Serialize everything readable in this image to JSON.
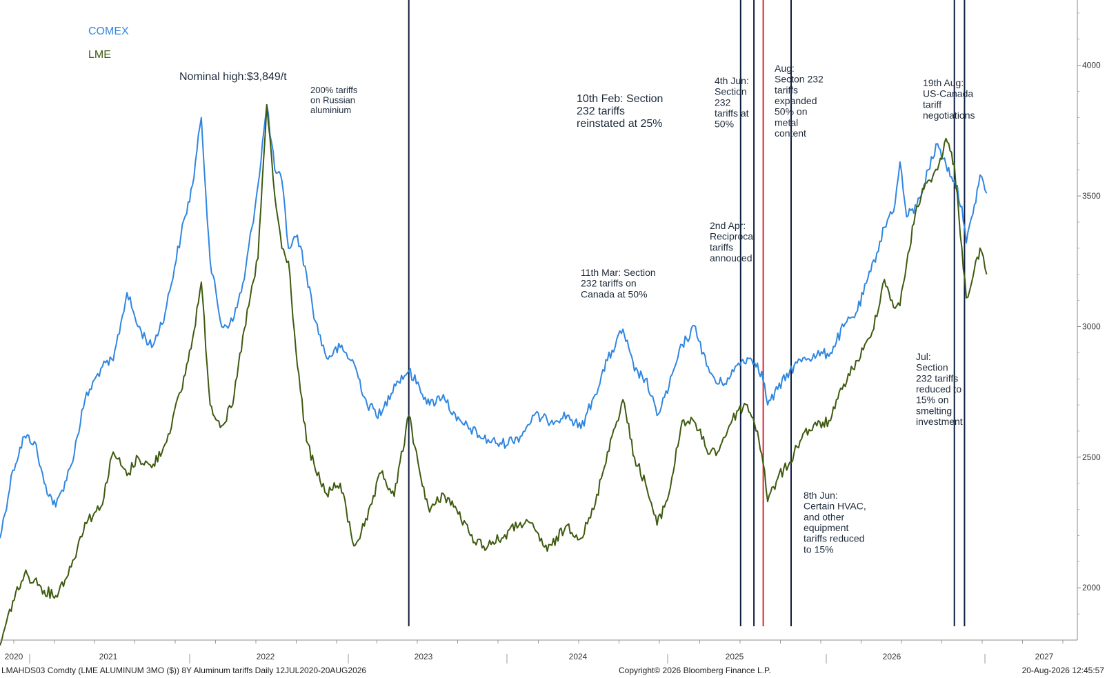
{
  "chart_data": {
    "type": "line",
    "ylim": [
      1800,
      4250
    ],
    "y_ticks": [
      2000,
      2500,
      3000,
      3500,
      4000
    ],
    "x_tick_labels": [
      "2020",
      "2021",
      "2022",
      "2023",
      "2024",
      "2025",
      "2026",
      "2027"
    ],
    "grid": false,
    "legend_position": "top-left",
    "series": [
      {
        "name": "COMEX",
        "color": "#2f86e0",
        "points": [
          [
            "2020-07-12",
            2190
          ],
          [
            "2020-08-10",
            2450
          ],
          [
            "2020-09-05",
            2580
          ],
          [
            "2020-09-28",
            2560
          ],
          [
            "2020-10-20",
            2400
          ],
          [
            "2020-11-15",
            2310
          ],
          [
            "2020-12-20",
            2470
          ],
          [
            "2021-01-20",
            2720
          ],
          [
            "2021-02-25",
            2840
          ],
          [
            "2021-03-25",
            2870
          ],
          [
            "2021-04-25",
            3130
          ],
          [
            "2021-05-20",
            3000
          ],
          [
            "2021-06-20",
            2920
          ],
          [
            "2021-07-20",
            3050
          ],
          [
            "2021-08-25",
            3350
          ],
          [
            "2021-09-20",
            3540
          ],
          [
            "2021-10-10",
            3800
          ],
          [
            "2021-10-30",
            3250
          ],
          [
            "2021-11-25",
            3000
          ],
          [
            "2021-12-20",
            3020
          ],
          [
            "2022-01-15",
            3180
          ],
          [
            "2022-02-15",
            3540
          ],
          [
            "2022-03-07",
            3849
          ],
          [
            "2022-03-25",
            3600
          ],
          [
            "2022-04-10",
            3560
          ],
          [
            "2022-04-25",
            3300
          ],
          [
            "2022-05-15",
            3350
          ],
          [
            "2022-06-05",
            3200
          ],
          [
            "2022-06-25",
            3020
          ],
          [
            "2022-07-20",
            2880
          ],
          [
            "2022-08-20",
            2920
          ],
          [
            "2022-09-20",
            2860
          ],
          [
            "2022-10-20",
            2700
          ],
          [
            "2022-11-20",
            2660
          ],
          [
            "2022-12-20",
            2780
          ],
          [
            "2023-01-22",
            2830
          ],
          [
            "2023-02-15",
            2770
          ],
          [
            "2023-03-10",
            2700
          ],
          [
            "2023-04-10",
            2740
          ],
          [
            "2023-05-10",
            2640
          ],
          [
            "2023-06-10",
            2610
          ],
          [
            "2023-07-10",
            2570
          ],
          [
            "2023-08-20",
            2550
          ],
          [
            "2023-10-01",
            2580
          ],
          [
            "2023-11-01",
            2660
          ],
          [
            "2023-12-01",
            2640
          ],
          [
            "2024-01-15",
            2660
          ],
          [
            "2024-02-15",
            2610
          ],
          [
            "2024-03-15",
            2730
          ],
          [
            "2024-04-15",
            2870
          ],
          [
            "2024-05-20",
            2990
          ],
          [
            "2024-06-15",
            2830
          ],
          [
            "2024-07-10",
            2800
          ],
          [
            "2024-08-05",
            2660
          ],
          [
            "2024-09-01",
            2770
          ],
          [
            "2024-10-01",
            2930
          ],
          [
            "2024-10-31",
            3000
          ],
          [
            "2024-11-25",
            2850
          ],
          [
            "2024-12-20",
            2780
          ],
          [
            "2025-01-15",
            2800
          ],
          [
            "2025-02-05",
            2860
          ],
          [
            "2025-02-25",
            2880
          ],
          [
            "2025-03-20",
            2860
          ],
          [
            "2025-04-05",
            2780
          ],
          [
            "2025-04-12",
            2700
          ],
          [
            "2025-05-05",
            2760
          ],
          [
            "2025-06-01",
            2830
          ],
          [
            "2025-07-01",
            2880
          ],
          [
            "2025-08-01",
            2890
          ],
          [
            "2025-09-01",
            2900
          ],
          [
            "2025-10-01",
            3000
          ],
          [
            "2025-11-01",
            3060
          ],
          [
            "2025-12-01",
            3210
          ],
          [
            "2026-01-01",
            3380
          ],
          [
            "2026-01-25",
            3470
          ],
          [
            "2026-02-05",
            3630
          ],
          [
            "2026-02-20",
            3420
          ],
          [
            "2026-03-15",
            3460
          ],
          [
            "2026-04-10",
            3600
          ],
          [
            "2026-05-01",
            3700
          ],
          [
            "2026-05-20",
            3620
          ],
          [
            "2026-06-08",
            3560
          ],
          [
            "2026-06-25",
            3460
          ],
          [
            "2026-07-05",
            3320
          ],
          [
            "2026-07-20",
            3430
          ],
          [
            "2026-08-05",
            3580
          ],
          [
            "2026-08-20",
            3510
          ]
        ]
      },
      {
        "name": "LME",
        "color": "#3d5a0f",
        "points": [
          [
            "2020-07-12",
            1780
          ],
          [
            "2020-08-10",
            1950
          ],
          [
            "2020-09-05",
            2050
          ],
          [
            "2020-09-28",
            2030
          ],
          [
            "2020-10-20",
            1990
          ],
          [
            "2020-11-15",
            1970
          ],
          [
            "2020-12-20",
            2080
          ],
          [
            "2021-01-20",
            2250
          ],
          [
            "2021-02-25",
            2310
          ],
          [
            "2021-03-25",
            2520
          ],
          [
            "2021-04-25",
            2430
          ],
          [
            "2021-05-20",
            2500
          ],
          [
            "2021-06-20",
            2460
          ],
          [
            "2021-07-20",
            2550
          ],
          [
            "2021-08-25",
            2750
          ],
          [
            "2021-09-20",
            2950
          ],
          [
            "2021-10-10",
            3170
          ],
          [
            "2021-10-30",
            2700
          ],
          [
            "2021-11-25",
            2620
          ],
          [
            "2021-12-20",
            2700
          ],
          [
            "2022-01-15",
            2990
          ],
          [
            "2022-02-15",
            3260
          ],
          [
            "2022-03-07",
            3849
          ],
          [
            "2022-03-25",
            3500
          ],
          [
            "2022-04-10",
            3300
          ],
          [
            "2022-04-25",
            3250
          ],
          [
            "2022-05-15",
            2850
          ],
          [
            "2022-06-05",
            2560
          ],
          [
            "2022-06-25",
            2450
          ],
          [
            "2022-07-20",
            2360
          ],
          [
            "2022-08-20",
            2400
          ],
          [
            "2022-09-20",
            2160
          ],
          [
            "2022-10-20",
            2260
          ],
          [
            "2022-11-20",
            2440
          ],
          [
            "2022-12-20",
            2350
          ],
          [
            "2023-01-22",
            2660
          ],
          [
            "2023-02-15",
            2450
          ],
          [
            "2023-03-10",
            2290
          ],
          [
            "2023-04-10",
            2360
          ],
          [
            "2023-05-10",
            2300
          ],
          [
            "2023-06-10",
            2200
          ],
          [
            "2023-07-10",
            2160
          ],
          [
            "2023-08-20",
            2190
          ],
          [
            "2023-10-01",
            2250
          ],
          [
            "2023-11-01",
            2230
          ],
          [
            "2023-12-01",
            2140
          ],
          [
            "2024-01-15",
            2240
          ],
          [
            "2024-02-15",
            2190
          ],
          [
            "2024-03-15",
            2300
          ],
          [
            "2024-04-15",
            2520
          ],
          [
            "2024-05-20",
            2720
          ],
          [
            "2024-06-15",
            2500
          ],
          [
            "2024-07-10",
            2400
          ],
          [
            "2024-08-05",
            2240
          ],
          [
            "2024-09-01",
            2360
          ],
          [
            "2024-10-01",
            2640
          ],
          [
            "2024-10-31",
            2630
          ],
          [
            "2024-11-25",
            2530
          ],
          [
            "2024-12-20",
            2520
          ],
          [
            "2025-01-15",
            2620
          ],
          [
            "2025-02-05",
            2680
          ],
          [
            "2025-02-25",
            2700
          ],
          [
            "2025-03-20",
            2600
          ],
          [
            "2025-04-05",
            2450
          ],
          [
            "2025-04-12",
            2330
          ],
          [
            "2025-05-05",
            2420
          ],
          [
            "2025-06-01",
            2480
          ],
          [
            "2025-07-01",
            2590
          ],
          [
            "2025-08-01",
            2620
          ],
          [
            "2025-09-01",
            2640
          ],
          [
            "2025-10-01",
            2780
          ],
          [
            "2025-11-01",
            2870
          ],
          [
            "2025-12-01",
            2960
          ],
          [
            "2026-01-01",
            3180
          ],
          [
            "2026-01-25",
            3070
          ],
          [
            "2026-02-05",
            3080
          ],
          [
            "2026-02-20",
            3240
          ],
          [
            "2026-03-15",
            3460
          ],
          [
            "2026-04-10",
            3560
          ],
          [
            "2026-05-01",
            3600
          ],
          [
            "2026-05-20",
            3720
          ],
          [
            "2026-06-08",
            3620
          ],
          [
            "2026-06-25",
            3300
          ],
          [
            "2026-07-05",
            3110
          ],
          [
            "2026-07-20",
            3190
          ],
          [
            "2026-08-05",
            3300
          ],
          [
            "2026-08-20",
            3200
          ]
        ]
      }
    ],
    "events": [
      {
        "date": "2023-01-22",
        "color": "#0d1b3e"
      },
      {
        "date": "2025-02-10",
        "color": "#0d1b3e"
      },
      {
        "date": "2025-03-12",
        "color": "#0d1b3e"
      },
      {
        "date": "2025-04-02",
        "color": "#e0202e"
      },
      {
        "date": "2025-06-04",
        "color": "#0d1b3e"
      },
      {
        "date": "2026-06-08",
        "color": "#0d1b3e"
      },
      {
        "date": "2026-07-01",
        "color": "#0d1b3e"
      }
    ],
    "annotations": [
      {
        "lines": [
          "Nominal high:$3,849/t"
        ],
        "color": "#e0202e",
        "size": 16
      },
      {
        "lines": [
          "200% tariffs",
          "on Russian",
          "aluminium"
        ],
        "color": "#1c2a3a",
        "size": 13
      },
      {
        "lines": [
          "10th Feb: Section",
          "232 tariffs",
          "reinstated at 25%"
        ],
        "color": "#1c2a3a",
        "size": 16
      },
      {
        "lines": [
          "11th Mar: Section",
          "232 tariffs on",
          "Canada at 50%"
        ],
        "color": "#1c2a3a",
        "size": 14
      },
      {
        "lines": [
          "2nd Apr:",
          "Reciprocal",
          "tariffs",
          "annouced"
        ],
        "color": "#e0202e",
        "size": 14
      },
      {
        "lines": [
          "4th Jun:",
          "Section",
          "232",
          "tariffs at",
          "50%"
        ],
        "color": "#1c2a3a",
        "size": 14
      },
      {
        "lines": [
          "Aug:",
          "Secton 232",
          "tariffs",
          "expanded",
          "50% on",
          "metal",
          "content"
        ],
        "color": "#1c2a3a",
        "size": 14
      },
      {
        "lines": [
          "8th Jun:",
          "Certain HVAC,",
          "and other",
          "equipment",
          "tariffs reduced",
          "to 15%"
        ],
        "color": "#1c2a3a",
        "size": 14
      },
      {
        "lines": [
          "19th Aug:",
          "US-Canada",
          "tariff",
          "negotiations"
        ],
        "color": "#1c2a3a",
        "size": 14
      },
      {
        "lines": [
          "Jul:",
          "Section",
          "232 tariffs",
          "reduced to",
          "15% on",
          "smelting",
          "investment"
        ],
        "color": "#1c2a3a",
        "size": 14
      }
    ],
    "footer_left": "LMAHDS03 Comdty (LME ALUMINUM  3MO ($)) 8Y Aluminum tariffs Daily 12JUL2020-20AUG2026",
    "footer_center": "Copyright© 2026 Bloomberg Finance L.P.",
    "footer_right": "20-Aug-2026 12:45:57"
  }
}
